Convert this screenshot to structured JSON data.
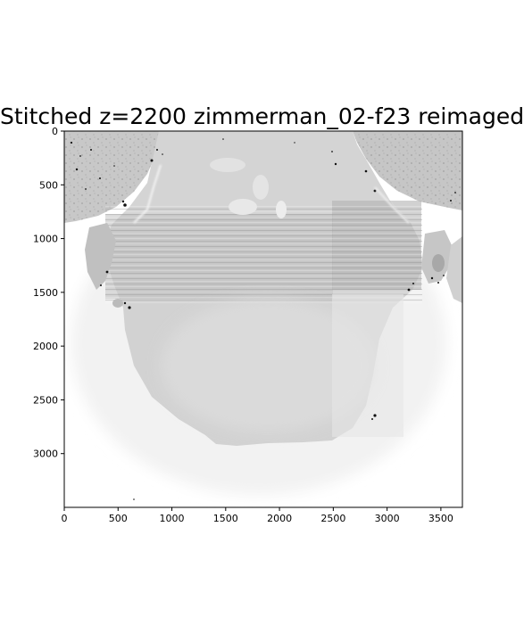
{
  "figure": {
    "title": "Stitched z=2200 zimmerman_02-f23 reimaged",
    "colormap": "grayscale-inverted",
    "image_subject": "stitched microscopy section (grayscale)",
    "x_axis": {
      "ticks": [
        "0",
        "500",
        "1000",
        "1500",
        "2000",
        "2500",
        "3000",
        "3500"
      ],
      "range": [
        0,
        3700
      ]
    },
    "y_axis": {
      "ticks": [
        "0",
        "500",
        "1000",
        "1500",
        "2000",
        "2500",
        "3000"
      ],
      "range": [
        0,
        3500
      ],
      "inverted": true
    }
  }
}
